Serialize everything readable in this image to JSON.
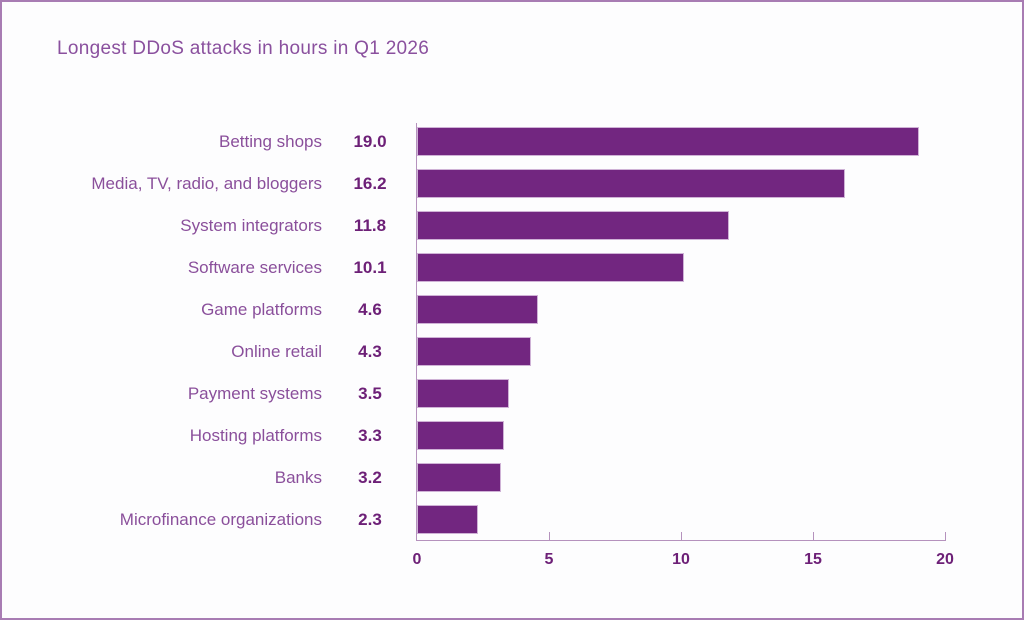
{
  "page": {
    "background_color": "#fdfdfe",
    "border_color": "#a87cb3"
  },
  "chart_data": {
    "type": "bar",
    "orientation": "horizontal",
    "title": "Longest DDoS attacks in hours in Q1 2026",
    "categories": [
      "Betting shops",
      "Media, TV, radio, and bloggers",
      "System integrators",
      "Software services",
      "Game platforms",
      "Online retail",
      "Payment systems",
      "Hosting platforms",
      "Banks",
      "Microfinance organizations"
    ],
    "values": [
      19.0,
      16.2,
      11.8,
      10.1,
      4.6,
      4.3,
      3.5,
      3.3,
      3.2,
      2.3
    ],
    "value_labels": [
      "19.0",
      "16.2",
      "11.8",
      "10.1",
      "4.6",
      "4.3",
      "3.5",
      "3.3",
      "3.2",
      "2.3"
    ],
    "xlabel": "",
    "ylabel": "",
    "xlim": [
      0,
      20
    ],
    "xticks": [
      0,
      5,
      10,
      15,
      20
    ],
    "grid": false,
    "legend": "none",
    "bar_color": "#722680",
    "bar_border_color": "#cfb2d6",
    "axis_color": "#b592bd",
    "title_color": "#8a509e",
    "category_label_color": "#8a4f9b",
    "value_label_color": "#6d2077",
    "tick_label_color": "#6d2077"
  }
}
